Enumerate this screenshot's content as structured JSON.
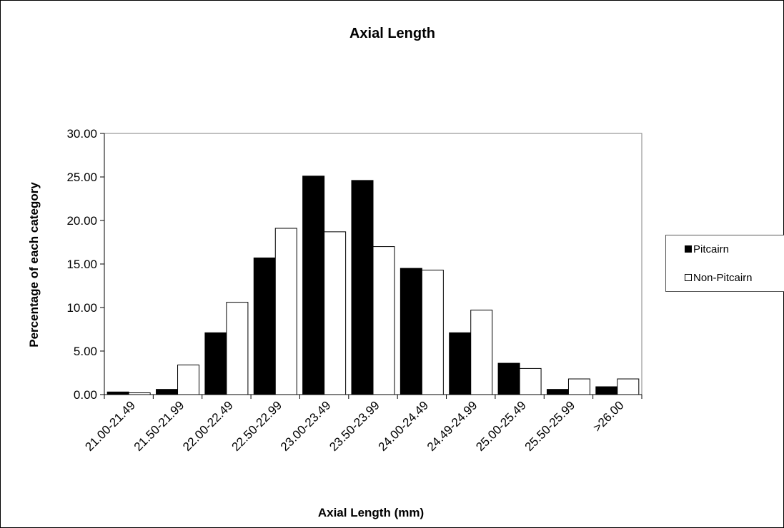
{
  "chart_data": {
    "type": "bar",
    "title": "Axial Length",
    "xlabel": "Axial Length (mm)",
    "ylabel": "Percentage of each category",
    "ylim": [
      0,
      30
    ],
    "yticks": [
      "0.00",
      "5.00",
      "10.00",
      "15.00",
      "20.00",
      "25.00",
      "30.00"
    ],
    "categories": [
      "21.00-21.49",
      "21.50-21.99",
      "22.00-22.49",
      "22.50-22.99",
      "23.00-23.49",
      "23.50-23.99",
      "24.00-24.49",
      "24.49-24.99",
      "25.00-25.49",
      "25.50-25.99",
      ">26.00"
    ],
    "series": [
      {
        "name": "Pitcairn",
        "color": "#000000",
        "values": [
          0.3,
          0.6,
          7.1,
          15.7,
          25.1,
          24.6,
          14.5,
          7.1,
          3.6,
          0.6,
          0.9
        ]
      },
      {
        "name": "Non-Pitcairn",
        "color": "#ffffff",
        "values": [
          0.2,
          3.4,
          10.6,
          19.1,
          18.7,
          17.0,
          14.3,
          9.7,
          3.0,
          1.8,
          1.8
        ]
      }
    ],
    "grid": false,
    "legend_position": "right"
  }
}
